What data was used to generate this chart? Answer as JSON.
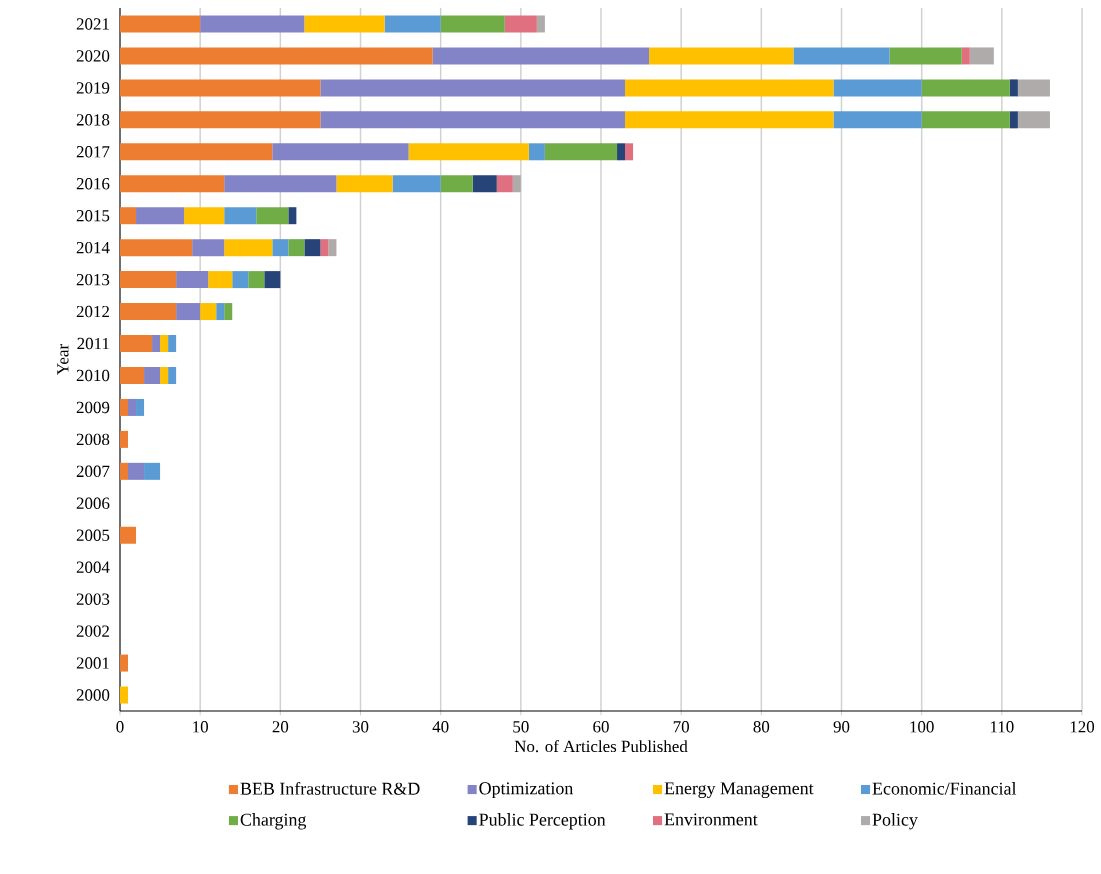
{
  "chart_data": {
    "type": "bar",
    "orientation": "horizontal",
    "stacked": true,
    "xlabel": "No. of Articles Published",
    "ylabel": "Year",
    "categories": [
      "2021",
      "2020",
      "2019",
      "2018",
      "2017",
      "2016",
      "2015",
      "2014",
      "2013",
      "2012",
      "2011",
      "2010",
      "2009",
      "2008",
      "2007",
      "2006",
      "2005",
      "2004",
      "2003",
      "2002",
      "2001",
      "2000"
    ],
    "series": [
      {
        "name": "BEB Infrastructure R&D",
        "color": "#ed7d31",
        "values": [
          10,
          39,
          25,
          25,
          19,
          13,
          2,
          9,
          7,
          7,
          4,
          3,
          1,
          1,
          1,
          0,
          2,
          0,
          0,
          0,
          1,
          0
        ]
      },
      {
        "name": "Optimization",
        "color": "#8383c8",
        "values": [
          13,
          27,
          38,
          38,
          17,
          14,
          6,
          4,
          4,
          3,
          1,
          2,
          1,
          0,
          2,
          0,
          0,
          0,
          0,
          0,
          0,
          0
        ]
      },
      {
        "name": "Energy Management",
        "color": "#ffc000",
        "values": [
          10,
          18,
          26,
          26,
          15,
          7,
          5,
          6,
          3,
          2,
          1,
          1,
          0,
          0,
          0,
          0,
          0,
          0,
          0,
          0,
          0,
          1
        ]
      },
      {
        "name": "Economic/Financial",
        "color": "#5b9bd5",
        "values": [
          7,
          12,
          11,
          11,
          2,
          6,
          4,
          2,
          2,
          1,
          1,
          1,
          1,
          0,
          2,
          0,
          0,
          0,
          0,
          0,
          0,
          0
        ]
      },
      {
        "name": "Charging",
        "color": "#70ad47",
        "values": [
          8,
          9,
          11,
          11,
          9,
          4,
          4,
          2,
          2,
          1,
          0,
          0,
          0,
          0,
          0,
          0,
          0,
          0,
          0,
          0,
          0,
          0
        ]
      },
      {
        "name": "Public Perception",
        "color": "#264478",
        "values": [
          0,
          0,
          1,
          1,
          1,
          3,
          1,
          2,
          2,
          0,
          0,
          0,
          0,
          0,
          0,
          0,
          0,
          0,
          0,
          0,
          0,
          0
        ]
      },
      {
        "name": "Environment",
        "color": "#e07080",
        "values": [
          4,
          1,
          0,
          0,
          1,
          2,
          0,
          1,
          0,
          0,
          0,
          0,
          0,
          0,
          0,
          0,
          0,
          0,
          0,
          0,
          0,
          0
        ]
      },
      {
        "name": "Policy",
        "color": "#afabab",
        "values": [
          1,
          3,
          4,
          4,
          0,
          1,
          0,
          1,
          0,
          0,
          0,
          0,
          0,
          0,
          0,
          0,
          0,
          0,
          0,
          0,
          0,
          0
        ]
      }
    ],
    "xlim": [
      0,
      120
    ],
    "xticks": [
      0,
      10,
      20,
      30,
      40,
      50,
      60,
      70,
      80,
      90,
      100,
      110,
      120
    ],
    "grid": "x",
    "legend": "bottom"
  }
}
